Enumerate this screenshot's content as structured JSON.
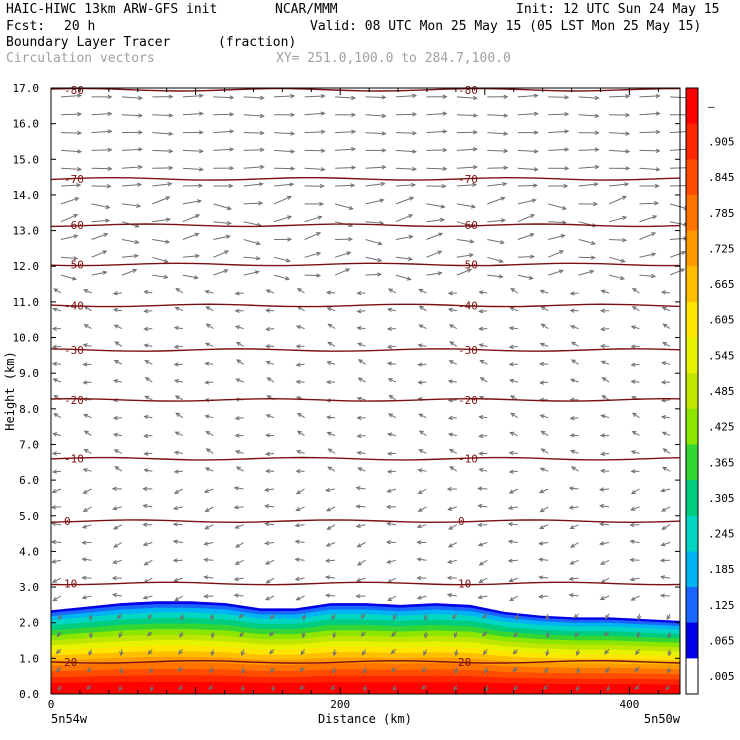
{
  "header": {
    "model": "HAIC-HIWC 13km ARW-GFS init",
    "org": "NCAR/MMM",
    "init": "Init: 12 UTC Sun 24 May 15",
    "fcst_label": "Fcst:",
    "fcst_value": "20 h",
    "valid": "Valid: 08 UTC Mon 25 May 15 (05 LST Mon 25 May 15)",
    "field": "Boundary Layer Tracer",
    "units": "(fraction)",
    "overlay": "Circulation vectors",
    "xy": "XY= 251.0,100.0 to 284.7,100.0"
  },
  "chart_data": {
    "type": "cross-section",
    "xlabel": "Distance (km)",
    "ylabel": "Height (km)",
    "xlim": [
      0,
      435
    ],
    "ylim": [
      0,
      17
    ],
    "x_ticks": [
      0,
      200,
      400
    ],
    "y_ticks": [
      "0.0",
      "1.0",
      "2.0",
      "3.0",
      "4.0",
      "5.0",
      "6.0",
      "7.0",
      "8.0",
      "9.0",
      "10.0",
      "11.0",
      "12.0",
      "13.0",
      "14.0",
      "15.0",
      "16.0",
      "17.0"
    ],
    "x_end_labels": [
      "5n54w",
      "5n50w"
    ],
    "colorbar": {
      "labels": [
        "–",
        ".905",
        ".845",
        ".785",
        ".725",
        ".665",
        ".605",
        ".545",
        ".485",
        ".425",
        ".365",
        ".305",
        ".245",
        ".185",
        ".125",
        ".065",
        ".005"
      ],
      "colors": [
        "#ff0000",
        "#ff2600",
        "#ff4c00",
        "#ff7300",
        "#ff9900",
        "#ffbf00",
        "#ffe600",
        "#e6f200",
        "#bfe600",
        "#8ce600",
        "#33d633",
        "#00cc80",
        "#00d6c2",
        "#00b3f2",
        "#1a66ff",
        "#0000e6",
        "#ffffff"
      ]
    },
    "contours": {
      "color": "#7a1010",
      "levels": [
        {
          "label": "20",
          "height": 0.9
        },
        {
          "label": "10",
          "height": 3.1
        },
        {
          "label": "0",
          "height": 4.85
        },
        {
          "label": "-10",
          "height": 6.6
        },
        {
          "label": "-20",
          "height": 8.25
        },
        {
          "label": "-30",
          "height": 9.65
        },
        {
          "label": "-40",
          "height": 10.9
        },
        {
          "label": "-50",
          "height": 12.05
        },
        {
          "label": "-60",
          "height": 13.15
        },
        {
          "label": "-70",
          "height": 14.45
        },
        {
          "label": "-80",
          "height": 16.95
        }
      ]
    },
    "tracer_top_km": [
      2.35,
      2.45,
      2.55,
      2.6,
      2.6,
      2.55,
      2.4,
      2.4,
      2.55,
      2.55,
      2.5,
      2.55,
      2.5,
      2.3,
      2.2,
      2.15,
      2.15,
      2.1,
      2.05
    ]
  }
}
